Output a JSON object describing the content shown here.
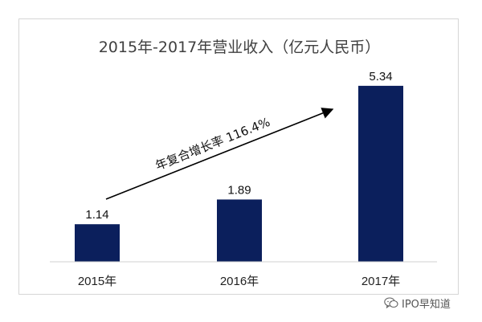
{
  "chart_data": {
    "type": "bar",
    "title": "2015年-2017年营业收入（亿元人民币）",
    "categories": [
      "2015年",
      "2016年",
      "2017年"
    ],
    "values": [
      1.14,
      1.89,
      5.34
    ],
    "value_labels": [
      "1.14",
      "1.89",
      "5.34"
    ],
    "xlabel": "",
    "ylabel": "",
    "ylim": [
      0,
      5.8
    ],
    "grid": false,
    "legend": "none",
    "annotation": "年复合增长率 116.4%",
    "colors": {
      "bar": "#0b1f5c",
      "text": "#222222"
    }
  },
  "watermark": {
    "icon": "wechat-icon",
    "text": "IPO早知道"
  }
}
